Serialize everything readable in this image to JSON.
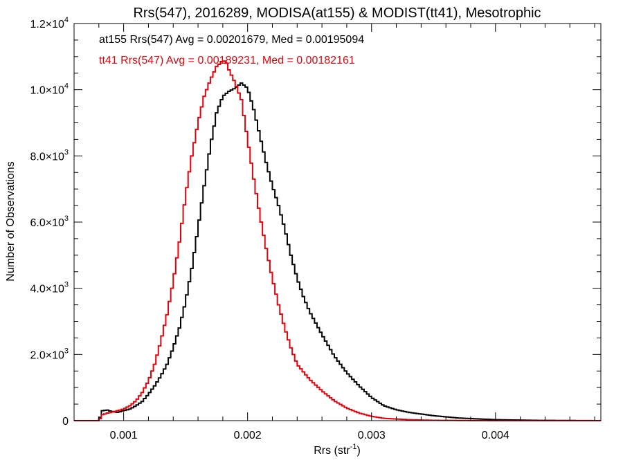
{
  "chart_data": {
    "type": "line",
    "title": "Rrs(547), 2016289, MODISA(at155) & MODIST(tt41), Mesotrophic",
    "xlabel": "Rrs (str",
    "xlabel_sup": "-1",
    "xlabel_close": ")",
    "ylabel": "Number of Observations",
    "xlim": [
      0.0006,
      0.00485
    ],
    "ylim": [
      0,
      12000
    ],
    "x_ticks": [
      {
        "value": 0.001,
        "label": "0.001"
      },
      {
        "value": 0.002,
        "label": "0.002"
      },
      {
        "value": 0.003,
        "label": "0.003"
      },
      {
        "value": 0.004,
        "label": "0.004"
      }
    ],
    "y_ticks": [
      {
        "value": 0,
        "mant": "0",
        "exp": ""
      },
      {
        "value": 2000,
        "mant": "2.0×10",
        "exp": "3"
      },
      {
        "value": 4000,
        "mant": "4.0×10",
        "exp": "3"
      },
      {
        "value": 6000,
        "mant": "6.0×10",
        "exp": "3"
      },
      {
        "value": 8000,
        "mant": "8.0×10",
        "exp": "3"
      },
      {
        "value": 10000,
        "mant": "1.0×10",
        "exp": "4"
      },
      {
        "value": 12000,
        "mant": "1.2×10",
        "exp": "4"
      }
    ],
    "annotations": [
      "at155 Rrs(547) Avg = 0.00201679, Med = 0.00195094",
      "tt41 Rrs(547) Avg = 0.00189231, Med = 0.00182161"
    ],
    "series": [
      {
        "color": "#000000",
        "x": [
          0.0006,
          0.00075,
          0.0008,
          0.00083,
          0.00087,
          0.0009,
          0.00095,
          0.001,
          0.00105,
          0.0011,
          0.00115,
          0.0012,
          0.00125,
          0.0013,
          0.00135,
          0.0014,
          0.00145,
          0.0015,
          0.00155,
          0.0016,
          0.00165,
          0.0017,
          0.00175,
          0.0018,
          0.00185,
          0.0019,
          0.00195,
          0.002,
          0.00205,
          0.0021,
          0.00215,
          0.0022,
          0.00225,
          0.0023,
          0.00235,
          0.0024,
          0.00245,
          0.0025,
          0.0026,
          0.0027,
          0.0028,
          0.0029,
          0.003,
          0.0031,
          0.0032,
          0.0033,
          0.0035,
          0.0037,
          0.004,
          0.0043,
          0.00485
        ],
        "y": [
          0,
          0,
          0,
          300,
          320,
          280,
          250,
          300,
          350,
          450,
          580,
          800,
          1050,
          1350,
          1700,
          2200,
          2800,
          3600,
          4600,
          5800,
          7100,
          8300,
          9300,
          9800,
          9950,
          10050,
          10200,
          10050,
          9400,
          8600,
          7800,
          7100,
          6500,
          5800,
          5000,
          4300,
          3750,
          3300,
          2600,
          1950,
          1450,
          1050,
          700,
          450,
          330,
          250,
          150,
          80,
          30,
          10,
          0
        ]
      },
      {
        "color": "#e8000a",
        "x": [
          0.0006,
          0.00075,
          0.0008,
          0.00083,
          0.00087,
          0.0009,
          0.00095,
          0.001,
          0.00105,
          0.0011,
          0.00115,
          0.0012,
          0.00125,
          0.0013,
          0.00135,
          0.0014,
          0.00145,
          0.0015,
          0.00155,
          0.0016,
          0.00165,
          0.0017,
          0.00175,
          0.00178,
          0.0018,
          0.00183,
          0.00185,
          0.0019,
          0.00195,
          0.002,
          0.00205,
          0.0021,
          0.00215,
          0.0022,
          0.00225,
          0.0023,
          0.00235,
          0.0024,
          0.0025,
          0.0026,
          0.0027,
          0.0028,
          0.0029,
          0.003,
          0.0031,
          0.0033,
          0.0035,
          0.004,
          0.00485
        ],
        "y": [
          0,
          0,
          0,
          180,
          230,
          250,
          300,
          350,
          450,
          600,
          850,
          1200,
          1700,
          2400,
          3200,
          4200,
          5400,
          6800,
          8000,
          9000,
          9800,
          10300,
          10700,
          10800,
          10900,
          10800,
          10600,
          10200,
          9700,
          8500,
          7300,
          6200,
          5200,
          4300,
          3500,
          2800,
          2200,
          1700,
          1250,
          900,
          600,
          380,
          230,
          130,
          70,
          30,
          10,
          0,
          0
        ]
      }
    ]
  }
}
